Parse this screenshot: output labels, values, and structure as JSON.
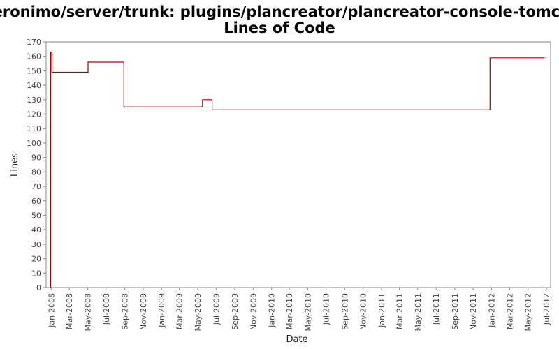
{
  "chart_data": {
    "type": "line",
    "title": "/geronimo/server/trunk: plugins/plancreator/plancreator-console-tomcat/",
    "subtitle": "Lines of Code",
    "xlabel": "Date",
    "ylabel": "Lines",
    "xlim": [
      "2007-12-15",
      "2012-07-15"
    ],
    "ylim": [
      0,
      170
    ],
    "y_ticks": [
      0,
      10,
      20,
      30,
      40,
      50,
      60,
      70,
      80,
      90,
      100,
      110,
      120,
      130,
      140,
      150,
      160,
      170
    ],
    "x_ticks": [
      {
        "label": "Jan-2008",
        "date": "2008-01-01"
      },
      {
        "label": "Mar-2008",
        "date": "2008-03-01"
      },
      {
        "label": "May-2008",
        "date": "2008-05-01"
      },
      {
        "label": "Jul-2008",
        "date": "2008-07-01"
      },
      {
        "label": "Sep-2008",
        "date": "2008-09-01"
      },
      {
        "label": "Nov-2008",
        "date": "2008-11-01"
      },
      {
        "label": "Jan-2009",
        "date": "2009-01-01"
      },
      {
        "label": "Mar-2009",
        "date": "2009-03-01"
      },
      {
        "label": "May-2009",
        "date": "2009-05-01"
      },
      {
        "label": "Jul-2009",
        "date": "2009-07-01"
      },
      {
        "label": "Sep-2009",
        "date": "2009-09-01"
      },
      {
        "label": "Nov-2009",
        "date": "2009-11-01"
      },
      {
        "label": "Jan-2010",
        "date": "2010-01-01"
      },
      {
        "label": "Mar-2010",
        "date": "2010-03-01"
      },
      {
        "label": "May-2010",
        "date": "2010-05-01"
      },
      {
        "label": "Jul-2010",
        "date": "2010-07-01"
      },
      {
        "label": "Sep-2010",
        "date": "2010-09-01"
      },
      {
        "label": "Nov-2010",
        "date": "2010-11-01"
      },
      {
        "label": "Jan-2011",
        "date": "2011-01-01"
      },
      {
        "label": "Mar-2011",
        "date": "2011-03-01"
      },
      {
        "label": "May-2011",
        "date": "2011-05-01"
      },
      {
        "label": "Jul-2011",
        "date": "2011-07-01"
      },
      {
        "label": "Sep-2011",
        "date": "2011-09-01"
      },
      {
        "label": "Nov-2011",
        "date": "2011-11-01"
      },
      {
        "label": "Jan-2012",
        "date": "2012-01-01"
      },
      {
        "label": "Mar-2012",
        "date": "2012-03-01"
      },
      {
        "label": "May-2012",
        "date": "2012-05-01"
      },
      {
        "label": "Jul-2012",
        "date": "2012-07-01"
      }
    ],
    "step": true,
    "grid": false,
    "legend": "none",
    "series": [
      {
        "color": "#b00000",
        "points": [
          {
            "x": "2007-12-29",
            "y": 0
          },
          {
            "x": "2007-12-30",
            "y": 163
          },
          {
            "x": "2008-01-03",
            "y": 149
          },
          {
            "x": "2008-05-02",
            "y": 156
          },
          {
            "x": "2008-08-29",
            "y": 125
          },
          {
            "x": "2009-05-17",
            "y": 130
          },
          {
            "x": "2009-06-18",
            "y": 123
          },
          {
            "x": "2011-12-27",
            "y": 159
          },
          {
            "x": "2012-06-25",
            "y": 159
          }
        ]
      }
    ]
  }
}
